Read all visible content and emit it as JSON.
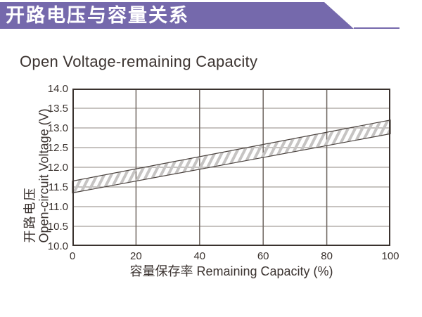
{
  "header": {
    "title": "开路电压与容量关系"
  },
  "subtitle": "Open Voltage-remaining Capacity",
  "colors": {
    "banner": "#7569ac",
    "text_dark": "#3a322e",
    "grid_h": "#8f8781",
    "grid_v": "#6f6660",
    "plot_border": "#3a322e",
    "band_edge": "#4a423e",
    "hatch": "#c6c4c3",
    "banner_text": "#ffffff"
  },
  "chart_data": {
    "type": "area",
    "title": "Open Voltage-remaining Capacity",
    "xlabel": "容量保存率 Remaining Capacity (%)",
    "ylabel": "开路电压 Open-circuit Voltage (V)",
    "ylabel_lines": {
      "cn": "开路电压",
      "en": "Open-circuit Voltage (V)"
    },
    "xlim": [
      0,
      100
    ],
    "ylim": [
      10.0,
      14.0
    ],
    "x_ticks": [
      0,
      20,
      40,
      60,
      80,
      100
    ],
    "x_tick_labels": [
      "0",
      "20",
      "40",
      "60",
      "80",
      "100"
    ],
    "y_ticks": [
      10.0,
      10.5,
      11.0,
      11.5,
      12.0,
      12.5,
      13.0,
      13.5,
      14.0
    ],
    "y_tick_labels": [
      "10.0",
      "10.5",
      "11.0",
      "11.5",
      "12.0",
      "12.5",
      "13.0",
      "13.5",
      "14.0"
    ],
    "grid": true,
    "legend": "none",
    "band": {
      "name": "open-circuit-voltage-band",
      "style": "diagonal-hatch",
      "x": [
        0,
        100
      ],
      "upper": [
        11.65,
        13.2
      ],
      "lower": [
        11.35,
        12.85
      ]
    }
  }
}
